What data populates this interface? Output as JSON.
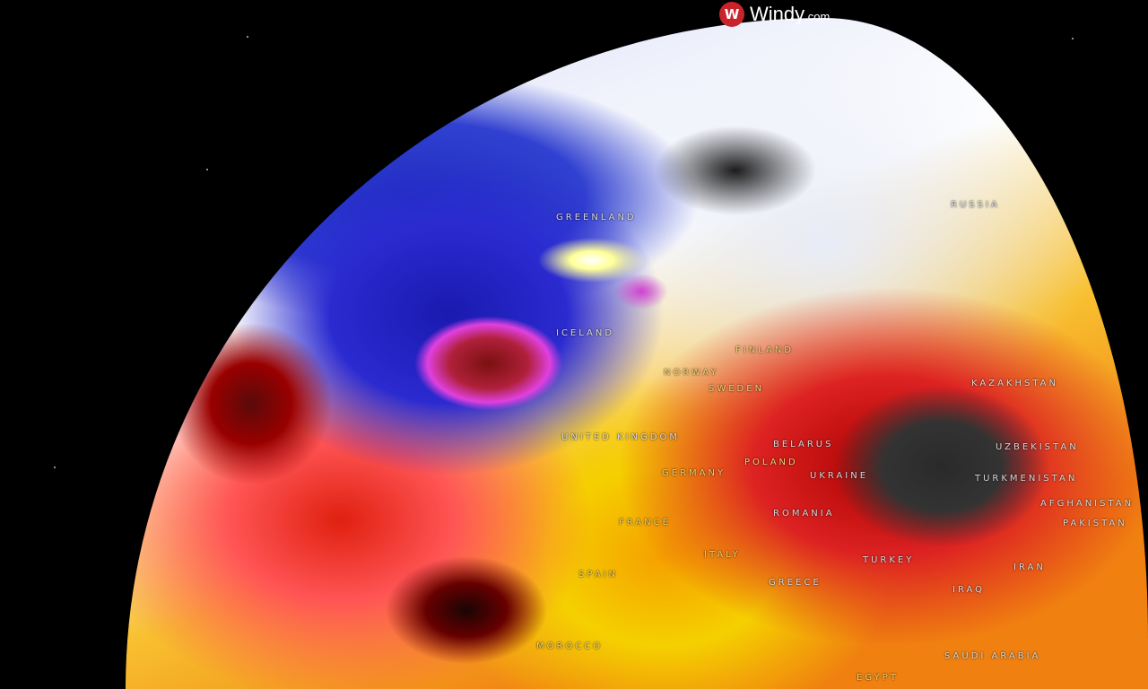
{
  "brand": {
    "name": "Windy",
    "suffix": ".com",
    "icon": "windy-logo-icon",
    "accent": "#c8242c"
  },
  "labels": {
    "greenland": "GREENLAND",
    "iceland": "ICELAND",
    "russia": "RUSSIA",
    "finland": "FINLAND",
    "norway": "NORWAY",
    "sweden": "SWEDEN",
    "uk": "UNITED KINGDOM",
    "belarus": "BELARUS",
    "poland": "POLAND",
    "germany": "GERMANY",
    "ukraine": "UKRAINE",
    "kazakhstan": "KAZAKHSTAN",
    "uzbekistan": "UZBEKISTAN",
    "turkmenistan": "TURKMENISTAN",
    "afghanistan": "AFGHANISTAN",
    "pakistan": "PAKISTAN",
    "romania": "ROMANIA",
    "france": "FRANCE",
    "italy": "ITALY",
    "spain": "SPAIN",
    "greece": "GREECE",
    "turkey": "TURKEY",
    "iraq": "IRAQ",
    "iran": "IRAN",
    "morocco": "MOROCCO",
    "saudi": "SAUDI ARABIA",
    "egypt": "EGYPT"
  }
}
